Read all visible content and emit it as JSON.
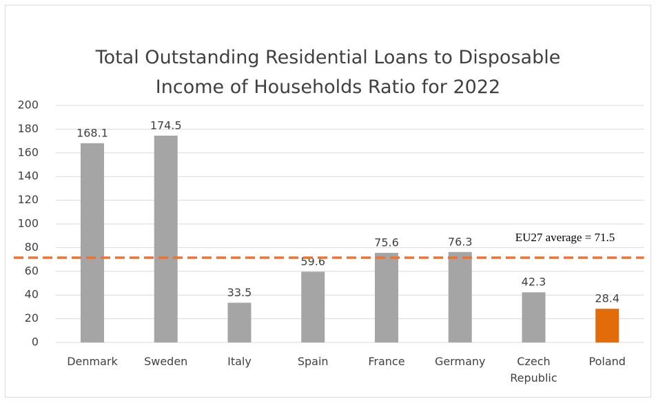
{
  "chart_data": {
    "type": "bar",
    "title": "Total Outstanding Residential Loans to Disposable Income of Households Ratio for 2022",
    "categories": [
      "Denmark",
      "Sweden",
      "Italy",
      "Spain",
      "France",
      "Germany",
      "Czech Republic",
      "Poland"
    ],
    "values": [
      168.1,
      174.5,
      33.5,
      59.6,
      75.6,
      76.3,
      42.3,
      28.4
    ],
    "colors": [
      "#a5a5a5",
      "#a5a5a5",
      "#a5a5a5",
      "#a5a5a5",
      "#a5a5a5",
      "#a5a5a5",
      "#a5a5a5",
      "#e36c0a"
    ],
    "ylim": [
      0,
      200
    ],
    "yticks": [
      0,
      20,
      40,
      60,
      80,
      100,
      120,
      140,
      160,
      180,
      200
    ],
    "grid": true,
    "reference_line": {
      "value": 71.5,
      "label": "EU27 average = 71.5",
      "color": "#ee7230"
    }
  }
}
